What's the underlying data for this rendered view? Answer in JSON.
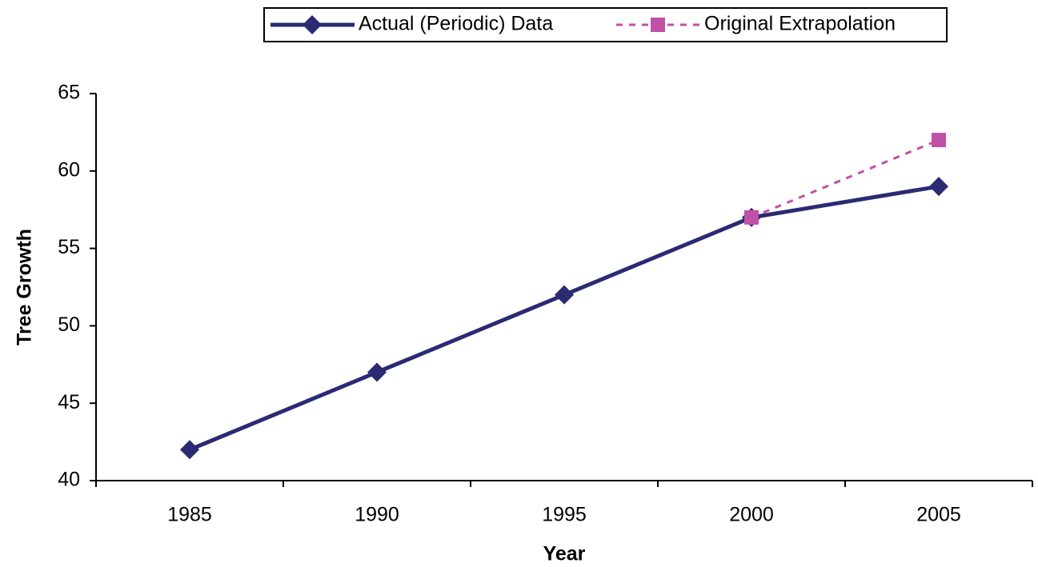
{
  "chart_data": {
    "type": "line",
    "x_label": "Year",
    "y_label": "Tree Growth",
    "categories": [
      "1985",
      "1990",
      "1995",
      "2000",
      "2005"
    ],
    "series": [
      {
        "name": "Actual (Periodic) Data",
        "color": "#2b2a73",
        "marker": "diamond",
        "line_style": "solid",
        "values": [
          42,
          47,
          52,
          57,
          59
        ]
      },
      {
        "name": "Original Extrapolation",
        "color": "#c050a8",
        "marker": "square",
        "line_style": "dashed",
        "values": [
          null,
          null,
          null,
          57,
          62
        ]
      }
    ],
    "ylim": [
      40,
      65
    ],
    "yticks": [
      40,
      45,
      50,
      55,
      60,
      65
    ],
    "grid": false,
    "legend": "top"
  }
}
